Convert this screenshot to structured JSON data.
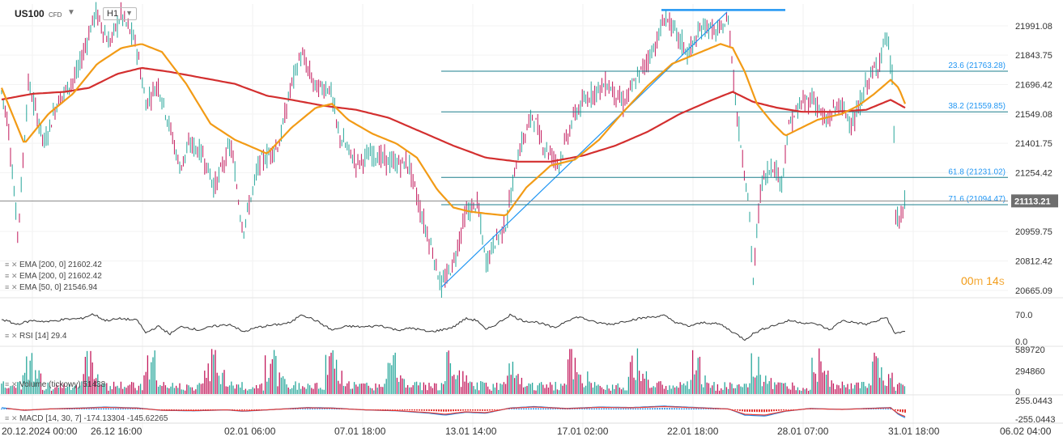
{
  "header": {
    "symbol": "US100",
    "symbol_sub": "CFD",
    "timeframe": "H1"
  },
  "price_axis": {
    "labels": [
      "21991.08",
      "21843.75",
      "21696.42",
      "21549.08",
      "21401.75",
      "21254.42",
      "20959.75",
      "20812.42",
      "20665.09"
    ],
    "current_price": "21113.21",
    "min": 20640,
    "max": 22100
  },
  "fib_levels": [
    {
      "label": "23.6 (21763.28)",
      "value": 21763.28
    },
    {
      "label": "38.2 (21559.85)",
      "value": 21559.85
    },
    {
      "label": "61.8 (21231.02)",
      "value": 21231.02
    },
    {
      "label": "71.6 (21094.47)",
      "value": 21094.47
    }
  ],
  "indicator_legend": [
    {
      "label": "EMA [200, 0]",
      "value": "21602.42"
    },
    {
      "label": "EMA [200, 0]",
      "value": "21602.42"
    },
    {
      "label": "EMA [50, 0]",
      "value": "21546.94"
    }
  ],
  "countdown": {
    "minutes": "00",
    "m_unit": "m",
    "seconds": "14",
    "s_unit": "s"
  },
  "rsi": {
    "label": "RSI [14]",
    "value": "29.4",
    "axis": [
      "70.0",
      "0.0"
    ]
  },
  "volume": {
    "label": "Volume (tickowy)",
    "value": "51438",
    "axis": [
      "589720",
      "294860",
      "0"
    ]
  },
  "macd": {
    "label": "MACD [14, 30, 7]",
    "value1": "-174.13304",
    "value2": "-145.62265",
    "axis": [
      "255.0443",
      "-255.0443"
    ]
  },
  "time_axis": [
    "20.12.2024  00:00",
    "26.12  16:00",
    "02.01  06:00",
    "07.01  18:00",
    "13.01  14:00",
    "17.01  02:00",
    "22.01  18:00",
    "28.01  07:00",
    "31.01  18:00",
    "06.02  04:00"
  ],
  "colors": {
    "up": "#26a69a",
    "down": "#c2185b",
    "ema200": "#d32f2f",
    "ema50": "#f29b16",
    "fib": "#1b7f8c",
    "trend": "#2196f3",
    "accent": "#f29b16"
  },
  "series": {
    "price_keys": [
      [
        0,
        21700
      ],
      [
        10,
        21500
      ],
      [
        22,
        20940
      ],
      [
        35,
        21700
      ],
      [
        55,
        21400
      ],
      [
        70,
        21600
      ],
      [
        95,
        21750
      ],
      [
        118,
        22060
      ],
      [
        135,
        21900
      ],
      [
        150,
        22050
      ],
      [
        168,
        21900
      ],
      [
        180,
        21600
      ],
      [
        195,
        21700
      ],
      [
        210,
        21480
      ],
      [
        222,
        21280
      ],
      [
        235,
        21400
      ],
      [
        250,
        21350
      ],
      [
        265,
        21180
      ],
      [
        285,
        21400
      ],
      [
        300,
        20960
      ],
      [
        320,
        21300
      ],
      [
        345,
        21400
      ],
      [
        360,
        21700
      ],
      [
        372,
        21850
      ],
      [
        390,
        21680
      ],
      [
        408,
        21680
      ],
      [
        418,
        21450
      ],
      [
        440,
        21300
      ],
      [
        460,
        21350
      ],
      [
        485,
        21300
      ],
      [
        505,
        21300
      ],
      [
        520,
        21050
      ],
      [
        535,
        20850
      ],
      [
        545,
        20680
      ],
      [
        560,
        20800
      ],
      [
        575,
        21050
      ],
      [
        590,
        21100
      ],
      [
        600,
        20800
      ],
      [
        610,
        20900
      ],
      [
        625,
        21000
      ],
      [
        640,
        21350
      ],
      [
        658,
        21550
      ],
      [
        670,
        21400
      ],
      [
        690,
        21300
      ],
      [
        710,
        21550
      ],
      [
        730,
        21650
      ],
      [
        750,
        21700
      ],
      [
        770,
        21600
      ],
      [
        790,
        21750
      ],
      [
        810,
        21900
      ],
      [
        822,
        22040
      ],
      [
        835,
        21950
      ],
      [
        850,
        21850
      ],
      [
        870,
        22000
      ],
      [
        885,
        21950
      ],
      [
        900,
        22020
      ],
      [
        910,
        21550
      ],
      [
        925,
        21100
      ],
      [
        930,
        20700
      ],
      [
        940,
        21200
      ],
      [
        955,
        21300
      ],
      [
        965,
        21200
      ],
      [
        975,
        21500
      ],
      [
        990,
        21600
      ],
      [
        1005,
        21630
      ],
      [
        1020,
        21500
      ],
      [
        1035,
        21600
      ],
      [
        1055,
        21500
      ],
      [
        1070,
        21700
      ],
      [
        1085,
        21800
      ],
      [
        1095,
        21950
      ],
      [
        1103,
        21700
      ],
      [
        1106,
        21050
      ],
      [
        1112,
        21000
      ],
      [
        1118,
        21113
      ]
    ],
    "ema50_keys": [
      [
        0,
        21700
      ],
      [
        30,
        21400
      ],
      [
        60,
        21550
      ],
      [
        90,
        21650
      ],
      [
        120,
        21800
      ],
      [
        150,
        21880
      ],
      [
        175,
        21900
      ],
      [
        200,
        21860
      ],
      [
        230,
        21700
      ],
      [
        260,
        21500
      ],
      [
        290,
        21420
      ],
      [
        330,
        21350
      ],
      [
        360,
        21480
      ],
      [
        390,
        21580
      ],
      [
        410,
        21600
      ],
      [
        430,
        21520
      ],
      [
        460,
        21450
      ],
      [
        490,
        21400
      ],
      [
        515,
        21330
      ],
      [
        540,
        21170
      ],
      [
        560,
        21080
      ],
      [
        580,
        21060
      ],
      [
        600,
        21050
      ],
      [
        625,
        21040
      ],
      [
        650,
        21180
      ],
      [
        680,
        21290
      ],
      [
        710,
        21320
      ],
      [
        740,
        21420
      ],
      [
        770,
        21560
      ],
      [
        800,
        21690
      ],
      [
        830,
        21800
      ],
      [
        860,
        21850
      ],
      [
        890,
        21900
      ],
      [
        905,
        21880
      ],
      [
        920,
        21760
      ],
      [
        935,
        21600
      ],
      [
        955,
        21500
      ],
      [
        970,
        21440
      ],
      [
        990,
        21480
      ],
      [
        1010,
        21520
      ],
      [
        1040,
        21550
      ],
      [
        1060,
        21590
      ],
      [
        1080,
        21650
      ],
      [
        1100,
        21720
      ],
      [
        1110,
        21680
      ],
      [
        1118,
        21600
      ]
    ],
    "ema200_keys": [
      [
        0,
        21620
      ],
      [
        40,
        21650
      ],
      [
        80,
        21660
      ],
      [
        110,
        21680
      ],
      [
        145,
        21750
      ],
      [
        175,
        21780
      ],
      [
        210,
        21760
      ],
      [
        250,
        21730
      ],
      [
        290,
        21700
      ],
      [
        330,
        21640
      ],
      [
        360,
        21620
      ],
      [
        400,
        21590
      ],
      [
        440,
        21570
      ],
      [
        480,
        21530
      ],
      [
        520,
        21460
      ],
      [
        560,
        21390
      ],
      [
        600,
        21330
      ],
      [
        640,
        21310
      ],
      [
        680,
        21310
      ],
      [
        720,
        21340
      ],
      [
        760,
        21390
      ],
      [
        800,
        21460
      ],
      [
        840,
        21550
      ],
      [
        880,
        21620
      ],
      [
        905,
        21660
      ],
      [
        930,
        21610
      ],
      [
        960,
        21580
      ],
      [
        990,
        21560
      ],
      [
        1030,
        21560
      ],
      [
        1070,
        21570
      ],
      [
        1100,
        21620
      ],
      [
        1118,
        21580
      ]
    ],
    "rsi_keys": [
      [
        0,
        60
      ],
      [
        20,
        45
      ],
      [
        40,
        55
      ],
      [
        60,
        52
      ],
      [
        80,
        58
      ],
      [
        100,
        60
      ],
      [
        115,
        72
      ],
      [
        130,
        55
      ],
      [
        150,
        60
      ],
      [
        170,
        55
      ],
      [
        180,
        22
      ],
      [
        195,
        40
      ],
      [
        210,
        20
      ],
      [
        225,
        40
      ],
      [
        245,
        30
      ],
      [
        265,
        40
      ],
      [
        285,
        45
      ],
      [
        300,
        25
      ],
      [
        320,
        38
      ],
      [
        345,
        45
      ],
      [
        360,
        50
      ],
      [
        372,
        72
      ],
      [
        390,
        55
      ],
      [
        410,
        30
      ],
      [
        430,
        40
      ],
      [
        450,
        38
      ],
      [
        470,
        42
      ],
      [
        490,
        30
      ],
      [
        510,
        35
      ],
      [
        530,
        25
      ],
      [
        545,
        30
      ],
      [
        560,
        38
      ],
      [
        575,
        60
      ],
      [
        590,
        55
      ],
      [
        600,
        30
      ],
      [
        615,
        48
      ],
      [
        630,
        70
      ],
      [
        645,
        55
      ],
      [
        665,
        50
      ],
      [
        685,
        35
      ],
      [
        700,
        55
      ],
      [
        715,
        65
      ],
      [
        735,
        50
      ],
      [
        755,
        45
      ],
      [
        775,
        55
      ],
      [
        795,
        62
      ],
      [
        820,
        68
      ],
      [
        835,
        50
      ],
      [
        850,
        40
      ],
      [
        870,
        50
      ],
      [
        890,
        45
      ],
      [
        905,
        25
      ],
      [
        920,
        5
      ],
      [
        930,
        20
      ],
      [
        945,
        35
      ],
      [
        960,
        45
      ],
      [
        975,
        55
      ],
      [
        990,
        50
      ],
      [
        1010,
        45
      ],
      [
        1025,
        30
      ],
      [
        1040,
        55
      ],
      [
        1055,
        50
      ],
      [
        1070,
        45
      ],
      [
        1085,
        55
      ],
      [
        1095,
        65
      ],
      [
        1105,
        20
      ],
      [
        1118,
        28
      ]
    ],
    "macd_keys": [
      [
        0,
        40
      ],
      [
        30,
        -20
      ],
      [
        60,
        10
      ],
      [
        100,
        30
      ],
      [
        130,
        50
      ],
      [
        170,
        30
      ],
      [
        200,
        -20
      ],
      [
        240,
        -30
      ],
      [
        280,
        -10
      ],
      [
        300,
        -40
      ],
      [
        340,
        0
      ],
      [
        380,
        40
      ],
      [
        410,
        30
      ],
      [
        450,
        -10
      ],
      [
        490,
        -30
      ],
      [
        530,
        -80
      ],
      [
        550,
        -120
      ],
      [
        575,
        -60
      ],
      [
        600,
        -80
      ],
      [
        630,
        30
      ],
      [
        660,
        60
      ],
      [
        700,
        20
      ],
      [
        740,
        50
      ],
      [
        780,
        40
      ],
      [
        820,
        70
      ],
      [
        860,
        40
      ],
      [
        900,
        10
      ],
      [
        920,
        -120
      ],
      [
        945,
        -140
      ],
      [
        970,
        -40
      ],
      [
        1000,
        20
      ],
      [
        1040,
        0
      ],
      [
        1070,
        20
      ],
      [
        1100,
        40
      ],
      [
        1110,
        -110
      ],
      [
        1118,
        -174
      ]
    ]
  }
}
